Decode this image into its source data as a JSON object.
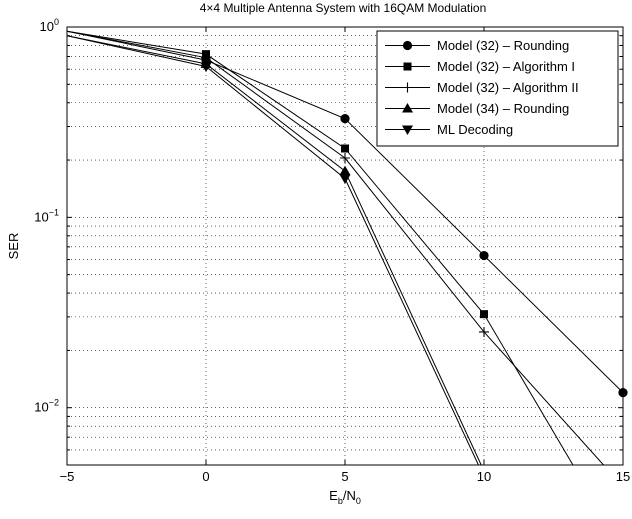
{
  "chart_data": {
    "type": "line",
    "title": "4×4 Multiple Antenna System with 16QAM Modulation",
    "xlabel": {
      "main": "E",
      "sub1": "b",
      "mid": "/N",
      "sub2": "0"
    },
    "ylabel": "SER",
    "xlim": [
      -5,
      15
    ],
    "ylim": [
      0.005,
      1
    ],
    "yscale": "log",
    "grid": true,
    "legend_position": "top-right",
    "xticks": [
      {
        "value": -5,
        "label": "−5"
      },
      {
        "value": 0,
        "label": "0"
      },
      {
        "value": 5,
        "label": "5"
      },
      {
        "value": 10,
        "label": "10"
      },
      {
        "value": 15,
        "label": "15"
      }
    ],
    "yticks": [
      {
        "value": 0.01,
        "base": "10",
        "exp": "−2"
      },
      {
        "value": 0.1,
        "base": "10",
        "exp": "−1"
      },
      {
        "value": 1,
        "base": "10",
        "exp": "0"
      }
    ],
    "series": [
      {
        "name": "Model (32) – Rounding",
        "marker": "circle",
        "x": [
          -5,
          0,
          5,
          10,
          15
        ],
        "y": [
          0.95,
          0.67,
          0.33,
          0.063,
          0.012
        ]
      },
      {
        "name": "Model (32) – Algorithm I",
        "marker": "square",
        "x": [
          -5,
          0,
          5,
          10,
          13.2
        ],
        "y": [
          0.95,
          0.72,
          0.23,
          0.031,
          0.005
        ]
      },
      {
        "name": "Model (32) – Algorithm II",
        "marker": "plus",
        "x": [
          -5,
          0,
          5,
          10,
          14.3
        ],
        "y": [
          0.95,
          0.69,
          0.205,
          0.025,
          0.005
        ]
      },
      {
        "name": "Model (34) – Rounding",
        "marker": "triangle-up",
        "x": [
          -5,
          0,
          5,
          9.9
        ],
        "y": [
          0.9,
          0.64,
          0.175,
          0.005
        ]
      },
      {
        "name": "ML Decoding",
        "marker": "triangle-down",
        "x": [
          -5,
          0,
          5,
          9.8
        ],
        "y": [
          0.9,
          0.62,
          0.16,
          0.005
        ]
      }
    ]
  }
}
